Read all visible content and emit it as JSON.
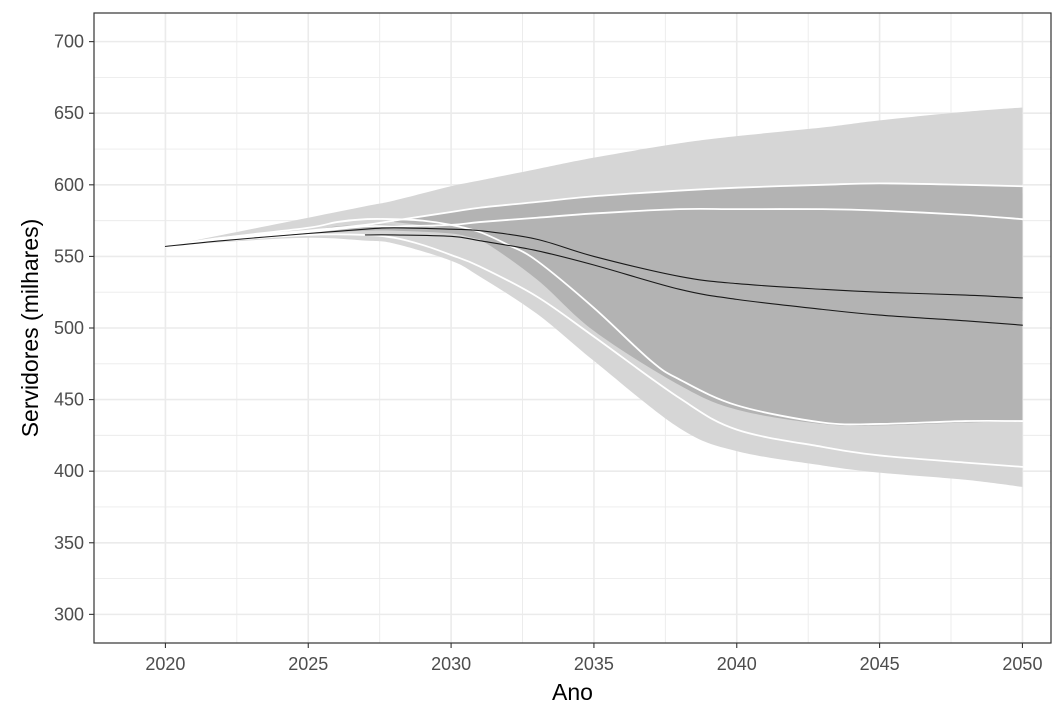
{
  "chart_data": {
    "type": "area",
    "title": "",
    "xlabel": "Ano",
    "ylabel": "Servidores (milhares)",
    "xlim": [
      2017.5,
      2051
    ],
    "ylim": [
      280,
      720
    ],
    "x_ticks": [
      2020,
      2025,
      2030,
      2035,
      2040,
      2045,
      2050
    ],
    "y_ticks": [
      300,
      350,
      400,
      450,
      500,
      550,
      600,
      650,
      700
    ],
    "grid": true,
    "legend": "none",
    "colors": {
      "outer_band": "#d6d6d6",
      "inner_band": "#b3b3b3",
      "band_lines": "#ffffff",
      "central_lines": "#1a1a1a",
      "grid": "#ebebeb",
      "panel_border": "#333333"
    },
    "bands": [
      {
        "x": [
          2020,
          2022,
          2025,
          2027,
          2028,
          2030,
          2031,
          2033,
          2035,
          2038,
          2040,
          2043,
          2045,
          2048,
          2050
        ],
        "upper": [
          557,
          565,
          577,
          585,
          589,
          599,
          603,
          611,
          619,
          629,
          634,
          640,
          645,
          651,
          654
        ],
        "lower": [
          557,
          560,
          563,
          561,
          559,
          547,
          536,
          510,
          477,
          430,
          414,
          404,
          399,
          394,
          389
        ],
        "fill": "#d6d6d6"
      },
      {
        "x": [
          2020,
          2022,
          2025,
          2026,
          2027,
          2028,
          2030,
          2031,
          2033,
          2035,
          2038,
          2040,
          2043,
          2045,
          2048,
          2050
        ],
        "upper": [
          557,
          561,
          568,
          571,
          572,
          572,
          570,
          570,
          570,
          571,
          574,
          577,
          584,
          588,
          591,
          594
        ],
        "lower": [
          557,
          561,
          566,
          567,
          568,
          568,
          566,
          562,
          556,
          543,
          527,
          514,
          508,
          508,
          510,
          512
        ],
        "fill": "#b3b3b3"
      },
      {
        "x": [
          2028,
          2030,
          2031,
          2033,
          2035,
          2038,
          2040,
          2043,
          2045,
          2048,
          2050
        ],
        "upper": [
          575,
          581,
          584,
          588,
          592,
          596,
          598,
          600,
          601,
          600,
          599
        ],
        "lower": [
          574,
          569,
          562,
          534,
          498,
          460,
          443,
          433,
          432,
          434,
          435
        ],
        "fill": "#b3b3b3"
      }
    ],
    "series": [
      {
        "role": "band-line",
        "color": "#ffffff",
        "x": [
          2020,
          2022,
          2025,
          2027,
          2028,
          2030,
          2031,
          2033,
          2035,
          2038,
          2040,
          2043,
          2045,
          2048,
          2050
        ],
        "values": [
          557,
          563,
          568,
          572,
          575,
          581,
          584,
          588,
          592,
          596,
          598,
          600,
          601,
          600,
          599
        ]
      },
      {
        "role": "band-line",
        "color": "#ffffff",
        "x": [
          2020,
          2022,
          2025,
          2027,
          2028,
          2030,
          2031,
          2033,
          2035,
          2038,
          2040,
          2043,
          2045,
          2048,
          2050
        ],
        "values": [
          557,
          562,
          567,
          571,
          571,
          572,
          574,
          577,
          580,
          583,
          583,
          583,
          582,
          579,
          576
        ]
      },
      {
        "role": "band-line",
        "color": "#ffffff",
        "x": [
          2020,
          2022,
          2025,
          2026,
          2027,
          2028,
          2029,
          2030,
          2031,
          2032,
          2033,
          2035,
          2037,
          2038,
          2040,
          2043,
          2045,
          2048,
          2050
        ],
        "values": [
          557,
          563,
          570,
          574,
          576,
          576,
          575,
          572,
          567,
          558,
          547,
          514,
          477,
          464,
          446,
          434,
          433,
          435,
          435
        ]
      },
      {
        "role": "band-line",
        "color": "#ffffff",
        "x": [
          2020,
          2022,
          2025,
          2027,
          2028,
          2029,
          2030,
          2031,
          2033,
          2035,
          2038,
          2040,
          2043,
          2045,
          2048,
          2050
        ],
        "values": [
          557,
          561,
          565,
          565,
          563,
          558,
          551,
          543,
          522,
          494,
          451,
          429,
          417,
          411,
          406,
          403
        ]
      },
      {
        "role": "central",
        "color": "#1a1a1a",
        "x": [
          2020,
          2022,
          2025,
          2027,
          2028,
          2030,
          2031,
          2033,
          2035,
          2038,
          2040,
          2043,
          2045,
          2048,
          2050
        ],
        "values": [
          557,
          561,
          566,
          569,
          570,
          569,
          568,
          562,
          550,
          536,
          531,
          527,
          525,
          523,
          521
        ]
      },
      {
        "role": "central",
        "color": "#1a1a1a",
        "x": [
          2027,
          2028,
          2030,
          2031,
          2033,
          2035,
          2038,
          2040,
          2043,
          2045,
          2048,
          2050
        ],
        "values": [
          565,
          565,
          564,
          561,
          554,
          544,
          527,
          520,
          513,
          509,
          505,
          502
        ]
      }
    ]
  }
}
